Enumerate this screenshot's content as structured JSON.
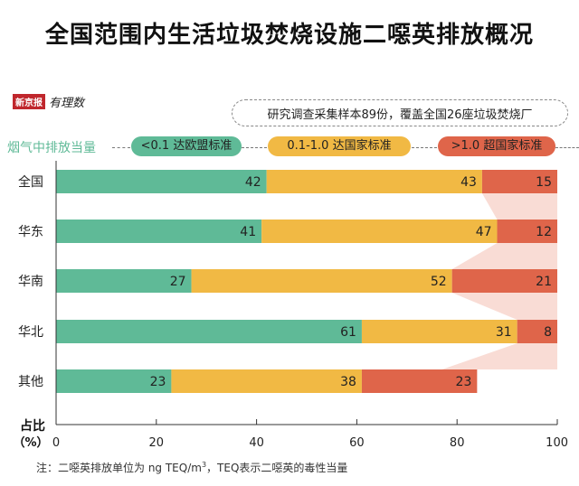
{
  "title": "全国范围内生活垃圾焚烧设施二噁英排放概况",
  "brand": {
    "name": "新京报",
    "sub": "有理数"
  },
  "note": "研究调查采集样本89份，覆盖全国26座垃圾焚烧厂",
  "legend_title": "烟气中排放当量",
  "footnote_parts": {
    "before": "注：二噁英排放单位为 ng TEQ/m",
    "sup": "3",
    "after": "，TEQ表示二噁英的毒性当量"
  },
  "chart_data": {
    "type": "bar",
    "orientation": "horizontal",
    "stacked": true,
    "categories": [
      "全国",
      "华东",
      "华南",
      "华北",
      "其他"
    ],
    "series": [
      {
        "name": "<0.1 达欧盟标准",
        "color": "#5fba97",
        "values": [
          42,
          41,
          27,
          61,
          23
        ]
      },
      {
        "name": "0.1-1.0 达国家标准",
        "color": "#f1b944",
        "values": [
          43,
          47,
          52,
          31,
          38
        ]
      },
      {
        "name": ">1.0 超国家标准",
        "color": "#df654a",
        "values": [
          15,
          12,
          21,
          8,
          23
        ]
      }
    ],
    "xlabel": "占比（%）",
    "xlim": [
      0,
      100
    ],
    "xticks": [
      "0",
      "20",
      "40",
      "60",
      "80",
      "100"
    ],
    "connector_color": "#f9dcd5"
  }
}
